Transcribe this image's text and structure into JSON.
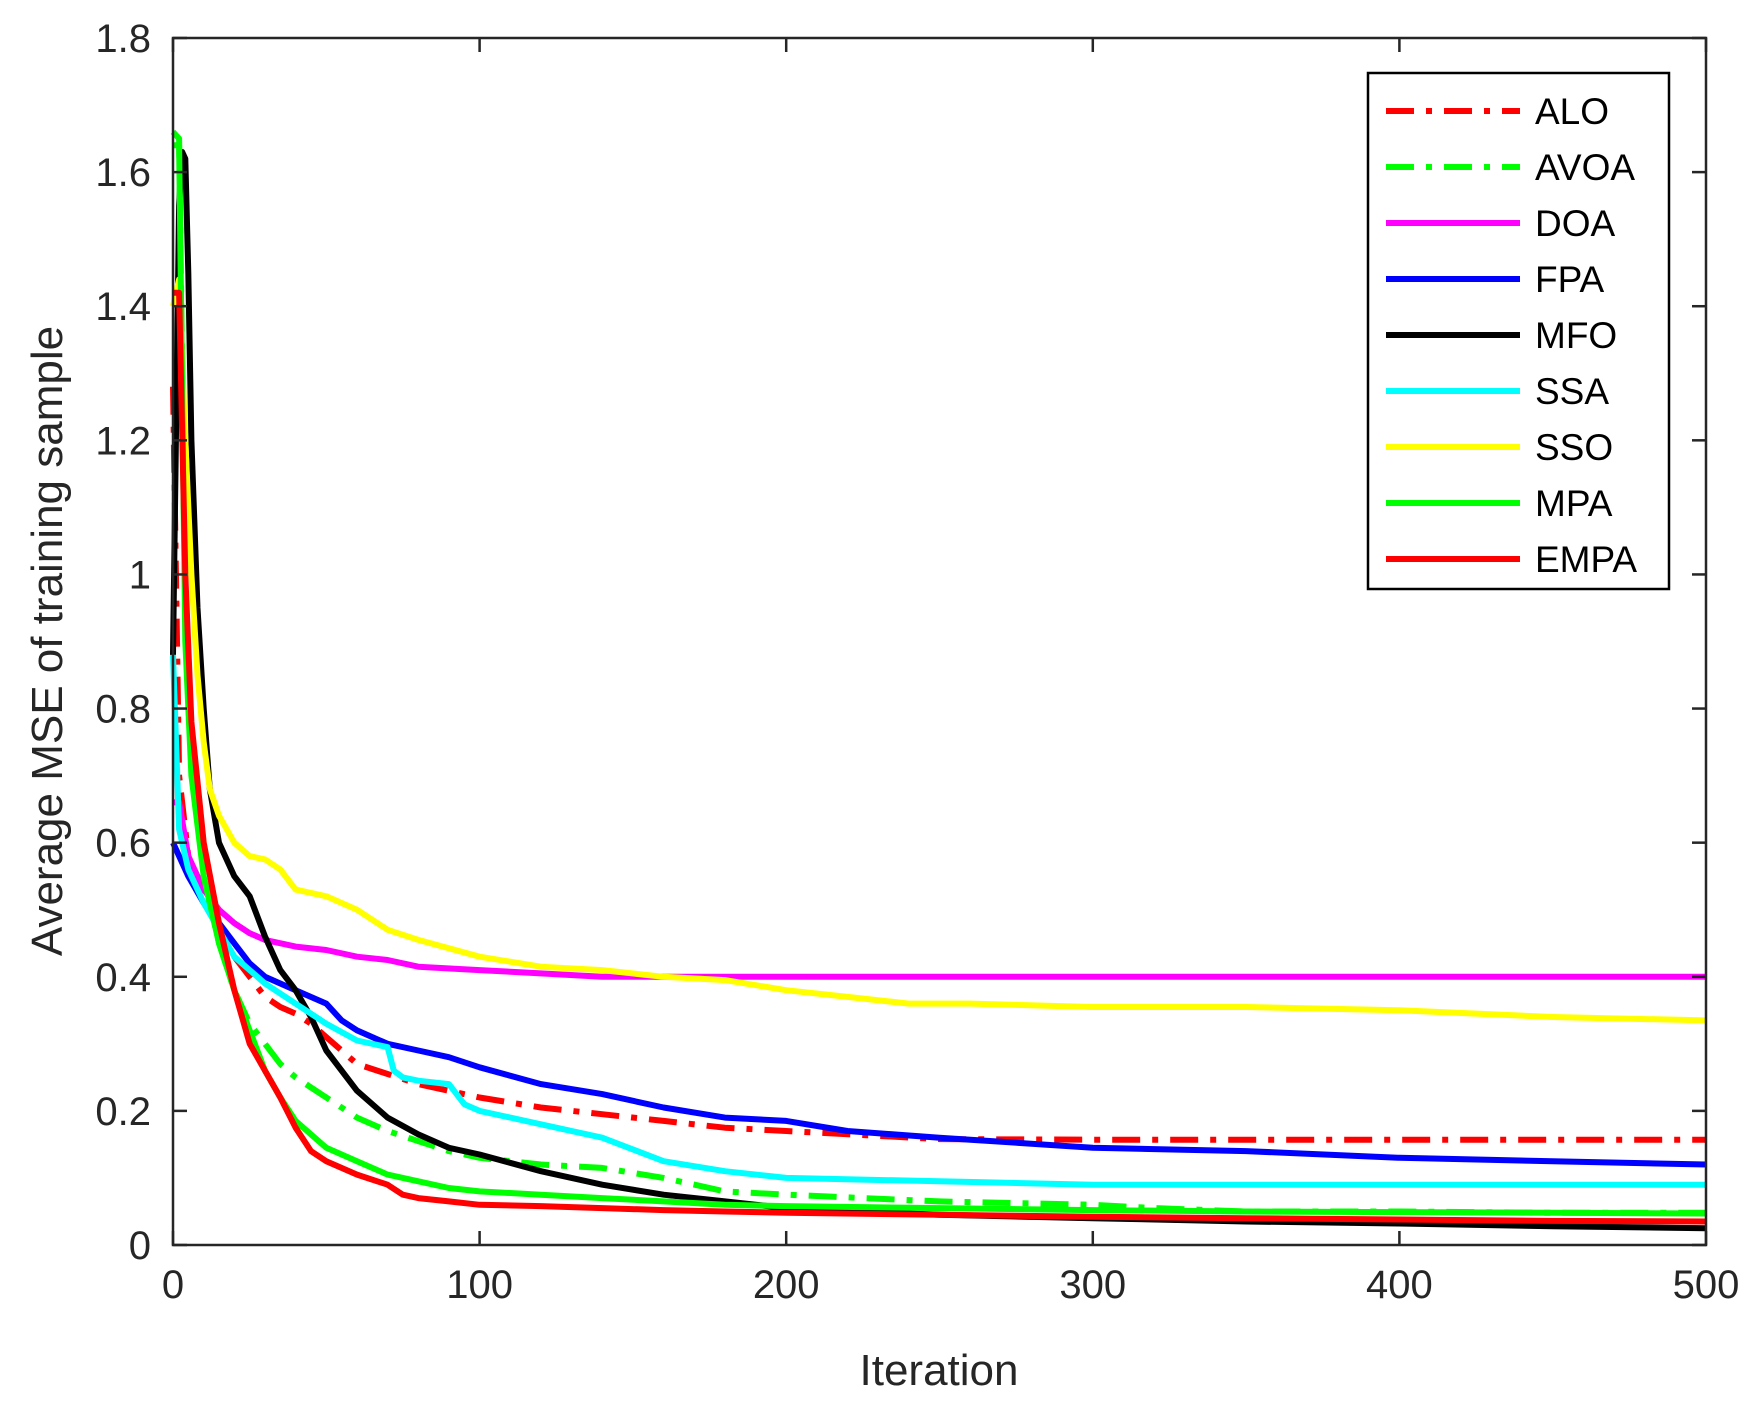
{
  "chart_data": {
    "type": "line",
    "xlabel": "Iteration",
    "ylabel": "Average MSE of training sample",
    "xlim": [
      0,
      500
    ],
    "ylim": [
      0,
      1.8
    ],
    "xticks": [
      0,
      100,
      200,
      300,
      400,
      500
    ],
    "xtick_labels": [
      "0",
      "100",
      "200",
      "300",
      "400",
      "500"
    ],
    "yticks": [
      0,
      0.2,
      0.4,
      0.6,
      0.8,
      1,
      1.2,
      1.4,
      1.6,
      1.8
    ],
    "ytick_labels": [
      "0",
      "0.2",
      "0.4",
      "0.6",
      "0.8",
      "1",
      "1.2",
      "1.4",
      "1.6",
      "1.8"
    ],
    "grid": false,
    "legend_position": "top-right",
    "series": [
      {
        "name": "ALO",
        "color": "#ff0000",
        "style": "dashdot",
        "x": [
          0,
          2,
          5,
          10,
          15,
          20,
          25,
          30,
          35,
          40,
          45,
          50,
          60,
          70,
          80,
          90,
          100,
          120,
          140,
          160,
          180,
          200,
          250,
          300,
          350,
          400,
          450,
          500
        ],
        "y": [
          1.28,
          0.7,
          0.58,
          0.52,
          0.47,
          0.43,
          0.4,
          0.37,
          0.355,
          0.345,
          0.33,
          0.31,
          0.27,
          0.255,
          0.24,
          0.23,
          0.22,
          0.205,
          0.195,
          0.185,
          0.175,
          0.17,
          0.158,
          0.157,
          0.157,
          0.157,
          0.157,
          0.157
        ]
      },
      {
        "name": "AVOA",
        "color": "#00ff00",
        "style": "dashdot",
        "x": [
          0,
          2,
          4,
          6,
          10,
          15,
          20,
          25,
          30,
          35,
          40,
          50,
          60,
          70,
          80,
          90,
          100,
          120,
          140,
          160,
          180,
          200,
          250,
          300,
          320,
          350,
          400,
          450,
          500
        ],
        "y": [
          1.66,
          1.65,
          0.95,
          0.75,
          0.55,
          0.45,
          0.38,
          0.33,
          0.3,
          0.27,
          0.25,
          0.22,
          0.19,
          0.17,
          0.155,
          0.14,
          0.13,
          0.12,
          0.115,
          0.1,
          0.08,
          0.075,
          0.065,
          0.06,
          0.055,
          0.05,
          0.05,
          0.048,
          0.048
        ]
      },
      {
        "name": "DOA",
        "color": "#ff00ff",
        "style": "solid",
        "x": [
          0,
          2,
          5,
          10,
          15,
          20,
          25,
          30,
          40,
          50,
          60,
          70,
          80,
          100,
          120,
          140,
          160,
          180,
          200,
          300,
          400,
          500
        ],
        "y": [
          0.66,
          0.66,
          0.58,
          0.53,
          0.5,
          0.48,
          0.465,
          0.455,
          0.445,
          0.44,
          0.43,
          0.425,
          0.415,
          0.41,
          0.405,
          0.4,
          0.4,
          0.4,
          0.4,
          0.4,
          0.4,
          0.4
        ]
      },
      {
        "name": "FPA",
        "color": "#0000ff",
        "style": "solid",
        "x": [
          0,
          2,
          5,
          10,
          15,
          20,
          25,
          30,
          40,
          50,
          55,
          60,
          70,
          80,
          90,
          100,
          120,
          140,
          160,
          180,
          200,
          220,
          250,
          300,
          350,
          400,
          450,
          500
        ],
        "y": [
          0.6,
          0.58,
          0.55,
          0.51,
          0.48,
          0.45,
          0.42,
          0.4,
          0.38,
          0.36,
          0.335,
          0.32,
          0.3,
          0.29,
          0.28,
          0.265,
          0.24,
          0.225,
          0.205,
          0.19,
          0.185,
          0.17,
          0.16,
          0.145,
          0.14,
          0.13,
          0.125,
          0.12
        ]
      },
      {
        "name": "MFO",
        "color": "#000000",
        "style": "solid",
        "x": [
          0,
          2,
          3,
          4,
          5,
          6,
          8,
          10,
          12,
          15,
          20,
          25,
          30,
          35,
          40,
          45,
          50,
          60,
          70,
          80,
          90,
          100,
          120,
          140,
          160,
          180,
          200,
          250,
          300,
          350,
          400,
          450,
          500
        ],
        "y": [
          0.88,
          1.55,
          1.63,
          1.62,
          1.45,
          1.2,
          0.95,
          0.8,
          0.68,
          0.6,
          0.55,
          0.52,
          0.46,
          0.41,
          0.38,
          0.34,
          0.29,
          0.23,
          0.19,
          0.165,
          0.145,
          0.135,
          0.11,
          0.09,
          0.075,
          0.065,
          0.055,
          0.045,
          0.04,
          0.035,
          0.032,
          0.028,
          0.025
        ]
      },
      {
        "name": "SSA",
        "color": "#00ffff",
        "style": "solid",
        "x": [
          0,
          2,
          5,
          10,
          15,
          20,
          25,
          30,
          40,
          50,
          60,
          70,
          72,
          75,
          80,
          90,
          95,
          100,
          120,
          140,
          160,
          180,
          200,
          250,
          300,
          350,
          400,
          450,
          500
        ],
        "y": [
          0.88,
          0.62,
          0.56,
          0.51,
          0.47,
          0.43,
          0.41,
          0.39,
          0.36,
          0.33,
          0.305,
          0.295,
          0.26,
          0.25,
          0.245,
          0.24,
          0.21,
          0.2,
          0.18,
          0.16,
          0.125,
          0.11,
          0.1,
          0.095,
          0.09,
          0.09,
          0.09,
          0.09,
          0.09
        ]
      },
      {
        "name": "SSO",
        "color": "#ffff00",
        "style": "solid",
        "x": [
          0,
          2,
          4,
          6,
          8,
          10,
          12,
          15,
          20,
          25,
          30,
          35,
          40,
          50,
          60,
          70,
          80,
          100,
          120,
          140,
          160,
          180,
          200,
          220,
          240,
          260,
          300,
          350,
          400,
          450,
          500
        ],
        "y": [
          1.4,
          1.44,
          1.2,
          1.0,
          0.85,
          0.75,
          0.68,
          0.64,
          0.6,
          0.58,
          0.575,
          0.56,
          0.53,
          0.52,
          0.5,
          0.47,
          0.455,
          0.43,
          0.415,
          0.41,
          0.4,
          0.395,
          0.38,
          0.37,
          0.36,
          0.36,
          0.355,
          0.355,
          0.35,
          0.34,
          0.335
        ]
      },
      {
        "name": "MPA",
        "color": "#00ff00",
        "style": "solid",
        "x": [
          0,
          2,
          4,
          6,
          10,
          15,
          20,
          25,
          30,
          35,
          40,
          50,
          60,
          70,
          80,
          90,
          100,
          120,
          140,
          160,
          180,
          200,
          250,
          300,
          350,
          400,
          450,
          500
        ],
        "y": [
          1.64,
          1.64,
          0.9,
          0.7,
          0.55,
          0.45,
          0.38,
          0.32,
          0.26,
          0.22,
          0.185,
          0.145,
          0.125,
          0.105,
          0.095,
          0.085,
          0.08,
          0.075,
          0.07,
          0.065,
          0.06,
          0.058,
          0.055,
          0.052,
          0.05,
          0.049,
          0.048,
          0.047
        ]
      },
      {
        "name": "EMPA",
        "color": "#ff0000",
        "style": "solid",
        "x": [
          0,
          2,
          4,
          6,
          10,
          15,
          20,
          25,
          30,
          35,
          40,
          45,
          50,
          60,
          70,
          75,
          80,
          90,
          100,
          120,
          140,
          160,
          180,
          200,
          250,
          300,
          350,
          400,
          450,
          500
        ],
        "y": [
          1.42,
          1.42,
          1.0,
          0.78,
          0.6,
          0.48,
          0.38,
          0.3,
          0.26,
          0.22,
          0.175,
          0.14,
          0.125,
          0.105,
          0.09,
          0.075,
          0.07,
          0.065,
          0.06,
          0.058,
          0.055,
          0.052,
          0.05,
          0.048,
          0.045,
          0.042,
          0.04,
          0.038,
          0.036,
          0.035
        ]
      }
    ]
  }
}
